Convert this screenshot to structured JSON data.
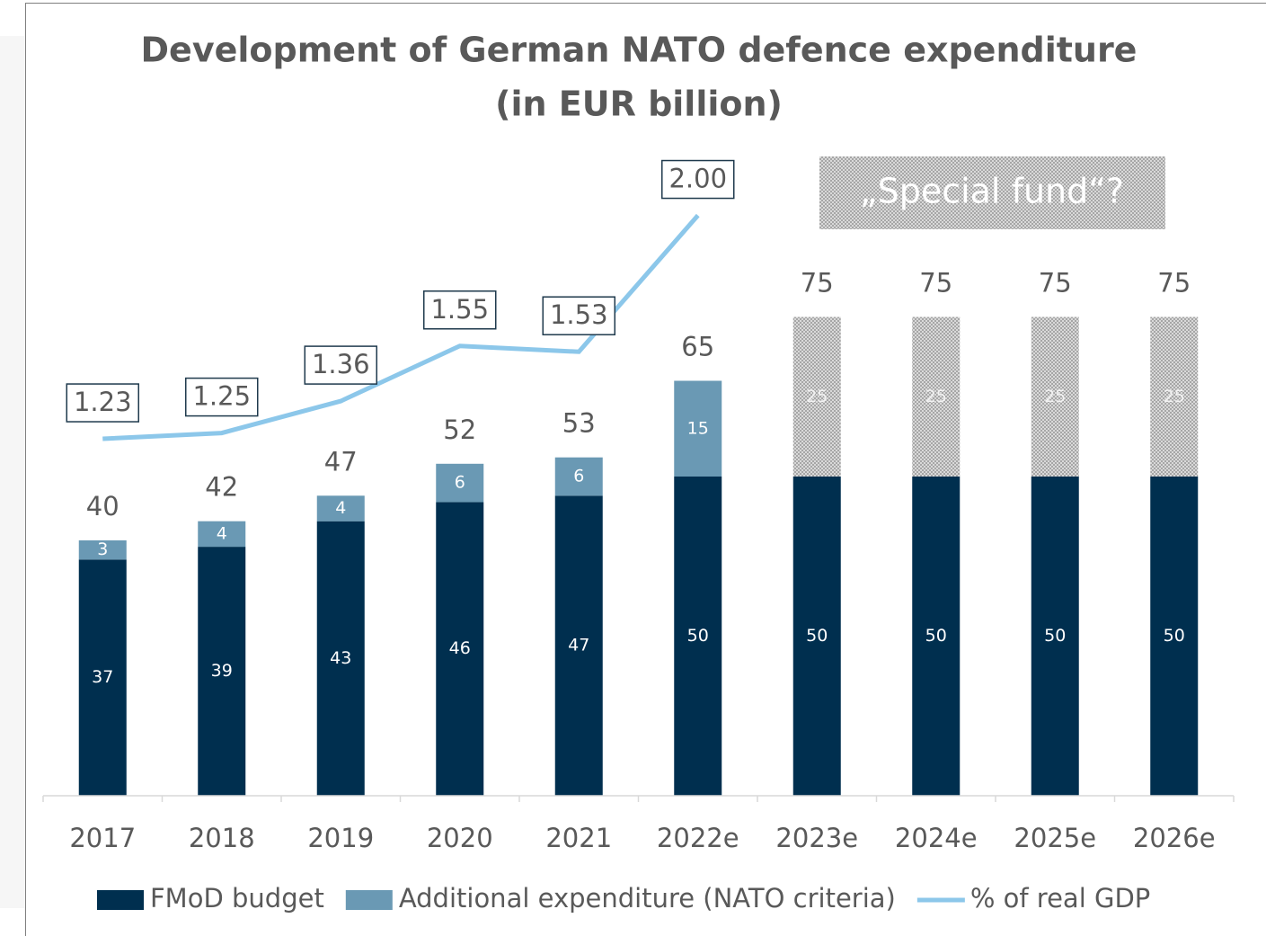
{
  "chart_data": {
    "type": "bar",
    "title": [
      "Development of German NATO defence expenditure",
      "(in EUR billion)"
    ],
    "annotation": "„Special fund“?",
    "categories": [
      "2017",
      "2018",
      "2019",
      "2020",
      "2021",
      "2022e",
      "2023e",
      "2024e",
      "2025e",
      "2026e"
    ],
    "stacked": true,
    "series": [
      {
        "name": "FMoD budget",
        "color": "#002f4f",
        "values": [
          37,
          39,
          43,
          46,
          47,
          50,
          50,
          50,
          50,
          50
        ]
      },
      {
        "name": "Additional expenditure (NATO criteria)",
        "color": "#6a99b4",
        "values": [
          3,
          4,
          4,
          6,
          6,
          15,
          25,
          25,
          25,
          25
        ],
        "hatched": [
          false,
          false,
          false,
          false,
          false,
          false,
          true,
          true,
          true,
          true
        ]
      },
      {
        "name": "% of real GDP",
        "type": "line",
        "axis": "y2",
        "color": "#8cc7ea",
        "values": [
          1.23,
          1.25,
          1.36,
          1.55,
          1.53,
          2.0,
          null,
          null,
          null,
          null
        ],
        "value_labels": [
          "1.23",
          "1.25",
          "1.36",
          "1.55",
          "1.53",
          "2.00",
          null,
          null,
          null,
          null
        ]
      }
    ],
    "totals": [
      40,
      42,
      47,
      52,
      53,
      65,
      75,
      75,
      75,
      75
    ],
    "ylim": [
      0,
      100
    ],
    "y2lim": [
      0,
      2.2
    ],
    "grid": false,
    "legend": "bottom"
  }
}
